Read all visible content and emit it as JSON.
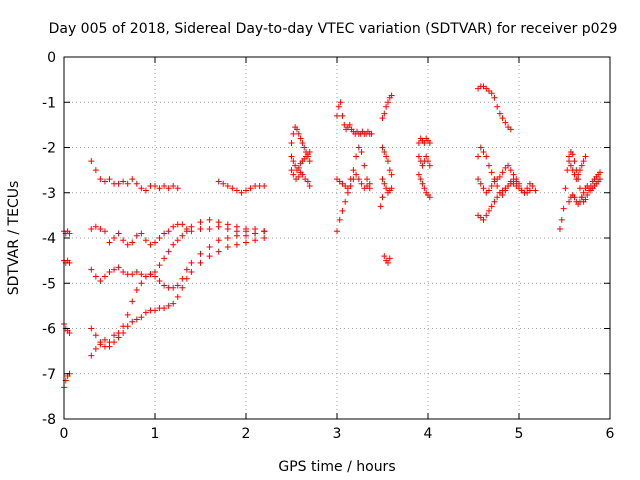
{
  "chart_data": {
    "type": "scatter",
    "title": "Day 005 of 2018, Sidereal Day-to-day VTEC variation (SDTVAR) for receiver p029",
    "xlabel": "GPS time / hours",
    "ylabel": "SDTVAR / TECUs",
    "xlim": [
      0,
      6
    ],
    "ylim": [
      -8,
      0
    ],
    "xticks": [
      "0",
      "1",
      "2",
      "3",
      "4",
      "5",
      "6"
    ],
    "yticks": [
      "0",
      "-1",
      "-2",
      "-3",
      "-4",
      "-5",
      "-6",
      "-7",
      "-8"
    ],
    "grid": true,
    "marker": "+",
    "color": "#ff0000",
    "series": [
      {
        "name": "s1",
        "x": [
          0.3,
          0.35,
          0.4,
          0.45,
          0.5,
          0.55,
          0.6,
          0.65,
          0.7,
          0.75,
          0.8,
          0.85,
          0.9,
          0.95,
          1.0,
          1.05,
          1.1,
          1.15,
          1.2,
          1.25
        ],
        "y": [
          -2.3,
          -2.5,
          -2.7,
          -2.75,
          -2.7,
          -2.8,
          -2.8,
          -2.75,
          -2.8,
          -2.7,
          -2.8,
          -2.9,
          -2.95,
          -2.85,
          -2.85,
          -2.9,
          -2.85,
          -2.9,
          -2.85,
          -2.9
        ]
      },
      {
        "name": "s2",
        "x": [
          1.7,
          1.75,
          1.8,
          1.85,
          1.9,
          1.95,
          2.0,
          2.05,
          2.1,
          2.15,
          2.2
        ],
        "y": [
          -2.75,
          -2.8,
          -2.85,
          -2.9,
          -2.95,
          -3.0,
          -2.95,
          -2.9,
          -2.85,
          -2.85,
          -2.85
        ]
      },
      {
        "name": "s3",
        "x": [
          0.3,
          0.35,
          0.4,
          0.45,
          0.5,
          0.55,
          0.6,
          0.65,
          0.7,
          0.75,
          0.8,
          0.85,
          0.9,
          0.95,
          1.0,
          1.05,
          1.1,
          1.15,
          1.2,
          1.25,
          1.3,
          1.35,
          1.4,
          1.5,
          1.6,
          1.7,
          1.8,
          1.9,
          2.0,
          2.1,
          2.2
        ],
        "y": [
          -3.8,
          -3.75,
          -3.8,
          -3.85,
          -4.1,
          -4.0,
          -3.9,
          -4.05,
          -4.15,
          -4.1,
          -3.95,
          -3.9,
          -4.05,
          -4.15,
          -4.1,
          -4.0,
          -3.9,
          -3.85,
          -3.75,
          -3.7,
          -3.7,
          -3.8,
          -3.85,
          -3.8,
          -3.8,
          -3.75,
          -3.8,
          -3.85,
          -3.85,
          -3.9,
          -3.85
        ]
      },
      {
        "name": "s4",
        "x": [
          0.3,
          0.35,
          0.4,
          0.45,
          0.5,
          0.55,
          0.6,
          0.65,
          0.7,
          0.75,
          0.8,
          0.85,
          0.9,
          0.95,
          1.0,
          1.05,
          1.1,
          1.15,
          1.2,
          1.25,
          1.3,
          1.35,
          1.4,
          1.5,
          1.6,
          1.7,
          1.8,
          1.9,
          2.0,
          2.1,
          2.2
        ],
        "y": [
          -4.7,
          -4.85,
          -4.95,
          -4.85,
          -4.75,
          -4.7,
          -4.65,
          -4.75,
          -4.8,
          -4.8,
          -4.75,
          -4.8,
          -4.85,
          -4.8,
          -4.75,
          -4.6,
          -4.45,
          -4.3,
          -4.15,
          -4.05,
          -3.95,
          -3.85,
          -3.75,
          -3.65,
          -3.6,
          -3.65,
          -3.7,
          -3.75,
          -3.8,
          -3.8,
          -3.85
        ]
      },
      {
        "name": "s5",
        "x": [
          0.3,
          0.35,
          0.4,
          0.45,
          0.5,
          0.55,
          0.6,
          0.65,
          0.7,
          0.75,
          0.8,
          0.85,
          0.9,
          0.95,
          1.0,
          1.05,
          1.1,
          1.15,
          1.2,
          1.25,
          1.3,
          1.35,
          1.4,
          1.5,
          1.6,
          1.7,
          1.8,
          1.9,
          2.0,
          2.1,
          2.2
        ],
        "y": [
          -6.0,
          -6.15,
          -6.3,
          -6.4,
          -6.3,
          -6.15,
          -6.1,
          -5.95,
          -5.7,
          -5.4,
          -5.15,
          -5.0,
          -4.85,
          -4.8,
          -4.85,
          -4.95,
          -5.05,
          -5.1,
          -5.1,
          -5.05,
          -4.9,
          -4.7,
          -4.55,
          -4.35,
          -4.2,
          -4.05,
          -4.0,
          -3.95,
          -3.95,
          -3.9,
          -3.85
        ]
      },
      {
        "name": "s6",
        "x": [
          0.3,
          0.35,
          0.4,
          0.45,
          0.5,
          0.55,
          0.6,
          0.65,
          0.7,
          0.75,
          0.8,
          0.85,
          0.9,
          0.95,
          1.0,
          1.05,
          1.1,
          1.15,
          1.2,
          1.25,
          1.3,
          1.35,
          1.4,
          1.5,
          1.6,
          1.7,
          1.8,
          1.9,
          2.0,
          2.1,
          2.2
        ],
        "y": [
          -6.6,
          -6.45,
          -6.35,
          -6.25,
          -6.4,
          -6.3,
          -6.2,
          -6.1,
          -5.95,
          -5.85,
          -5.8,
          -5.75,
          -5.65,
          -5.6,
          -5.6,
          -5.55,
          -5.55,
          -5.5,
          -5.45,
          -5.3,
          -5.1,
          -4.9,
          -4.75,
          -4.55,
          -4.4,
          -4.3,
          -4.2,
          -4.15,
          -4.1,
          -4.05,
          -4.0
        ]
      },
      {
        "name": "s7",
        "x": [
          0.0,
          0.02,
          0.04,
          0.06,
          0.0,
          0.02,
          0.04,
          0.06,
          0.0,
          0.02,
          0.04,
          0.06,
          0.0,
          0.02,
          0.04,
          0.06
        ],
        "y": [
          -3.85,
          -3.9,
          -3.85,
          -3.9,
          -4.5,
          -4.55,
          -4.5,
          -4.55,
          -5.9,
          -6.0,
          -6.05,
          -6.1,
          -7.3,
          -7.15,
          -7.05,
          -7.0
        ]
      },
      {
        "name": "s8",
        "x": [
          2.5,
          2.52,
          2.54,
          2.56,
          2.58,
          2.6,
          2.62,
          2.64,
          2.66,
          2.68,
          2.7,
          2.5,
          2.52,
          2.54,
          2.56,
          2.58,
          2.6,
          2.62,
          2.64,
          2.66,
          2.68,
          2.7,
          2.5,
          2.52,
          2.55,
          2.58,
          2.6,
          2.62,
          2.65,
          2.68,
          2.7
        ],
        "y": [
          -1.9,
          -1.7,
          -1.55,
          -1.6,
          -1.7,
          -1.8,
          -1.9,
          -2.0,
          -2.1,
          -2.2,
          -2.3,
          -2.2,
          -2.3,
          -2.4,
          -2.5,
          -2.45,
          -2.35,
          -2.3,
          -2.25,
          -2.2,
          -2.15,
          -2.1,
          -2.5,
          -2.6,
          -2.7,
          -2.65,
          -2.55,
          -2.6,
          -2.7,
          -2.75,
          -2.85
        ]
      },
      {
        "name": "s9",
        "x": [
          3.0,
          3.02,
          3.04,
          3.06,
          3.08,
          3.1,
          3.12,
          3.14,
          3.16,
          3.18,
          3.2,
          3.22,
          3.24,
          3.26,
          3.28,
          3.3,
          3.32,
          3.34,
          3.36,
          3.38
        ],
        "y": [
          -1.3,
          -1.1,
          -1.0,
          -1.3,
          -1.5,
          -1.6,
          -1.55,
          -1.5,
          -1.6,
          -1.65,
          -1.7,
          -1.65,
          -1.7,
          -1.7,
          -1.65,
          -1.7,
          -1.7,
          -1.65,
          -1.7,
          -1.7
        ]
      },
      {
        "name": "s10",
        "x": [
          3.0,
          3.03,
          3.06,
          3.09,
          3.12,
          3.15,
          3.18,
          3.21,
          3.24,
          3.27,
          3.3,
          3.33,
          3.36,
          3.0,
          3.03,
          3.06,
          3.09,
          3.12,
          3.15,
          3.18,
          3.21,
          3.24,
          3.27,
          3.3,
          3.33,
          3.36
        ],
        "y": [
          -3.85,
          -3.6,
          -3.4,
          -3.2,
          -3.0,
          -2.85,
          -2.7,
          -2.6,
          -2.7,
          -2.8,
          -2.9,
          -2.85,
          -2.8,
          -2.7,
          -2.75,
          -2.8,
          -2.85,
          -2.9,
          -2.7,
          -2.5,
          -2.2,
          -2.0,
          -2.1,
          -2.4,
          -2.7,
          -2.9
        ]
      },
      {
        "name": "s11",
        "x": [
          3.5,
          3.52,
          3.54,
          3.56,
          3.58,
          3.6,
          3.5,
          3.52,
          3.54,
          3.56,
          3.58,
          3.6,
          3.5,
          3.52,
          3.54,
          3.56,
          3.58,
          3.6,
          3.48,
          3.5,
          3.52,
          3.54,
          3.56,
          3.58
        ],
        "y": [
          -1.35,
          -1.25,
          -1.1,
          -1.0,
          -0.9,
          -0.85,
          -2.0,
          -2.1,
          -2.2,
          -2.3,
          -2.5,
          -2.6,
          -2.7,
          -2.8,
          -2.9,
          -3.0,
          -2.95,
          -2.9,
          -3.3,
          -3.1,
          -4.4,
          -4.5,
          -4.55,
          -4.45
        ]
      },
      {
        "name": "s12",
        "x": [
          3.9,
          3.92,
          3.94,
          3.96,
          3.98,
          4.0,
          4.02,
          3.9,
          3.92,
          3.94,
          3.96,
          3.98,
          4.0,
          4.02,
          3.9,
          3.92,
          3.94,
          3.96,
          3.98,
          4.0,
          4.02
        ],
        "y": [
          -1.9,
          -1.8,
          -1.85,
          -1.9,
          -1.8,
          -1.85,
          -1.9,
          -2.2,
          -2.3,
          -2.4,
          -2.3,
          -2.2,
          -2.3,
          -2.4,
          -2.6,
          -2.7,
          -2.8,
          -2.9,
          -3.0,
          -3.05,
          -3.1
        ]
      },
      {
        "name": "s13",
        "x": [
          4.55,
          4.58,
          4.61,
          4.64,
          4.67,
          4.7,
          4.73,
          4.76,
          4.79,
          4.82,
          4.85,
          4.88,
          4.91,
          4.55,
          4.58,
          4.61,
          4.64,
          4.67,
          4.7,
          4.73,
          4.76,
          4.79,
          4.82,
          4.85,
          4.88,
          4.91,
          4.94,
          4.97,
          5.0,
          5.03,
          5.06,
          5.09,
          5.12,
          5.15,
          5.18
        ],
        "y": [
          -0.7,
          -0.65,
          -0.65,
          -0.7,
          -0.75,
          -0.8,
          -0.9,
          -1.1,
          -1.25,
          -1.35,
          -1.45,
          -1.55,
          -1.6,
          -2.2,
          -2.0,
          -2.1,
          -2.2,
          -2.4,
          -2.55,
          -2.7,
          -2.85,
          -3.0,
          -3.05,
          -2.95,
          -2.85,
          -2.75,
          -2.7,
          -2.75,
          -2.85,
          -2.95,
          -3.0,
          -2.9,
          -2.8,
          -2.85,
          -2.95
        ]
      },
      {
        "name": "s14",
        "x": [
          4.55,
          4.58,
          4.61,
          4.64,
          4.67,
          4.7,
          4.73,
          4.76,
          4.79,
          4.82,
          4.85,
          4.88,
          4.91,
          4.94,
          4.97,
          5.0,
          5.03,
          5.06,
          5.09,
          5.12,
          4.55,
          4.58,
          4.61,
          4.64,
          4.67,
          4.7,
          4.73,
          4.76,
          4.79,
          4.82,
          4.85,
          4.88,
          4.91,
          4.94,
          4.97,
          5.0
        ],
        "y": [
          -3.5,
          -3.55,
          -3.6,
          -3.5,
          -3.4,
          -3.3,
          -3.2,
          -3.1,
          -3.0,
          -2.95,
          -2.9,
          -2.85,
          -2.8,
          -2.8,
          -2.85,
          -2.9,
          -2.95,
          -3.0,
          -3.0,
          -2.95,
          -2.7,
          -2.8,
          -2.9,
          -3.0,
          -2.95,
          -2.85,
          -2.75,
          -2.7,
          -2.65,
          -2.55,
          -2.45,
          -2.4,
          -2.5,
          -2.6,
          -2.7,
          -2.8
        ]
      },
      {
        "name": "s15",
        "x": [
          5.45,
          5.47,
          5.49,
          5.51,
          5.53,
          5.55,
          5.57,
          5.59,
          5.61,
          5.63,
          5.65,
          5.67,
          5.69,
          5.71,
          5.73,
          5.75,
          5.77,
          5.79,
          5.81,
          5.83,
          5.85,
          5.87,
          5.89
        ],
        "y": [
          -3.8,
          -3.6,
          -3.35,
          -2.9,
          -2.5,
          -2.2,
          -2.1,
          -2.15,
          -2.3,
          -2.5,
          -2.7,
          -2.9,
          -3.1,
          -3.2,
          -3.15,
          -3.05,
          -2.95,
          -2.85,
          -2.75,
          -2.7,
          -2.65,
          -2.6,
          -2.55
        ]
      },
      {
        "name": "s16",
        "x": [
          5.55,
          5.57,
          5.59,
          5.61,
          5.63,
          5.65,
          5.67,
          5.69,
          5.71,
          5.73,
          5.75,
          5.77,
          5.79,
          5.81,
          5.83,
          5.85,
          5.87,
          5.89,
          5.55,
          5.57,
          5.59,
          5.61,
          5.63,
          5.65,
          5.67,
          5.69,
          5.71,
          5.73
        ],
        "y": [
          -3.2,
          -3.1,
          -3.05,
          -3.1,
          -3.2,
          -3.25,
          -3.2,
          -3.1,
          -3.0,
          -2.9,
          -2.85,
          -2.9,
          -2.95,
          -2.9,
          -2.85,
          -2.8,
          -2.75,
          -2.7,
          -2.3,
          -2.4,
          -2.5,
          -2.6,
          -2.7,
          -2.6,
          -2.5,
          -2.4,
          -2.3,
          -2.2
        ]
      }
    ]
  }
}
